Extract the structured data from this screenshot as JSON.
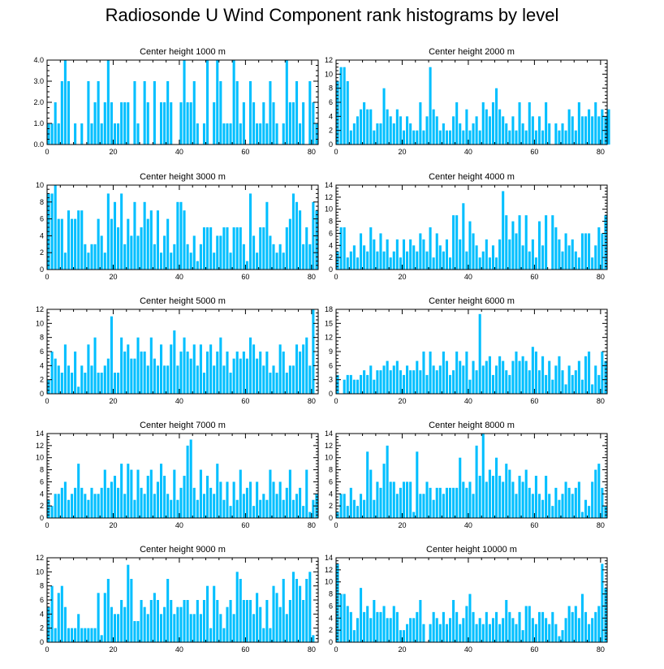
{
  "title": "Radiosonde U Wind Component rank histograms by level",
  "colors": {
    "bar": "#00BFFF",
    "axis": "#000000"
  },
  "chart_data": [
    {
      "type": "bar",
      "title": "Center height 1000 m",
      "xlim": [
        0,
        82
      ],
      "ylim": [
        0,
        4
      ],
      "xticks": [
        "0",
        "20",
        "40",
        "60",
        "80"
      ],
      "yticks": [
        "0.0",
        "1.0",
        "2.0",
        "3.0",
        "4.0"
      ],
      "values": [
        1,
        1,
        2,
        1,
        3,
        4,
        3,
        0,
        1,
        0,
        1,
        0,
        3,
        1,
        2,
        3,
        1,
        2,
        4,
        2,
        1,
        1,
        2,
        2,
        2,
        0,
        3,
        1,
        0,
        3,
        2,
        0,
        3,
        0,
        2,
        2,
        3,
        2,
        0,
        0,
        2,
        4,
        2,
        2,
        3,
        1,
        0,
        1,
        4,
        0,
        2,
        4,
        3,
        1,
        1,
        1,
        4,
        3,
        1,
        2,
        0,
        3,
        2,
        1,
        1,
        2,
        1,
        3,
        2,
        1,
        0,
        1,
        4,
        2,
        2,
        3,
        1,
        2,
        0,
        3,
        2,
        1
      ]
    },
    {
      "type": "bar",
      "title": "Center height 2000 m",
      "xlim": [
        0,
        82
      ],
      "ylim": [
        0,
        12
      ],
      "xticks": [
        "0",
        "20",
        "40",
        "60",
        "80"
      ],
      "yticks": [
        "0",
        "2",
        "4",
        "6",
        "8",
        "10",
        "12"
      ],
      "values": [
        9,
        11,
        11,
        9,
        2,
        3,
        4,
        5,
        6,
        5,
        5,
        2,
        3,
        3,
        8,
        5,
        4,
        3,
        5,
        4,
        2,
        4,
        3,
        2,
        2,
        6,
        2,
        4,
        11,
        5,
        4,
        2,
        3,
        2,
        2,
        4,
        6,
        3,
        2,
        5,
        2,
        3,
        4,
        2,
        6,
        5,
        4,
        6,
        8,
        5,
        4,
        3,
        2,
        4,
        2,
        6,
        3,
        2,
        6,
        4,
        2,
        4,
        2,
        6,
        3,
        0,
        3,
        2,
        3,
        2,
        5,
        4,
        2,
        6,
        4,
        4,
        5,
        4,
        6,
        4,
        5,
        4,
        5
      ]
    },
    {
      "type": "bar",
      "title": "Center height 3000 m",
      "xlim": [
        0,
        82
      ],
      "ylim": [
        0,
        10
      ],
      "xticks": [
        "0",
        "20",
        "40",
        "60",
        "80"
      ],
      "yticks": [
        "0",
        "2",
        "4",
        "6",
        "8",
        "10"
      ],
      "values": [
        9,
        9,
        10,
        6,
        6,
        2,
        7,
        6,
        6,
        7,
        7,
        3,
        2,
        3,
        3,
        6,
        4,
        2,
        9,
        6,
        8,
        5,
        9,
        3,
        6,
        4,
        8,
        4,
        5,
        8,
        6,
        7,
        3,
        7,
        2,
        4,
        6,
        2,
        3,
        8,
        8,
        7,
        3,
        2,
        4,
        1,
        3,
        5,
        5,
        5,
        2,
        4,
        4,
        5,
        5,
        2,
        5,
        5,
        5,
        3,
        1,
        9,
        4,
        2,
        5,
        5,
        8,
        4,
        3,
        2,
        3,
        2,
        5,
        6,
        9,
        8,
        7,
        3,
        5,
        3,
        8,
        7
      ]
    },
    {
      "type": "bar",
      "title": "Center height 4000 m",
      "xlim": [
        0,
        82
      ],
      "ylim": [
        0,
        14
      ],
      "xticks": [
        "0",
        "20",
        "40",
        "60",
        "80"
      ],
      "yticks": [
        "0",
        "2",
        "4",
        "6",
        "8",
        "10",
        "12",
        "14"
      ],
      "values": [
        3,
        7,
        7,
        2,
        3,
        4,
        2,
        6,
        4,
        3,
        7,
        5,
        3,
        6,
        3,
        5,
        2,
        3,
        5,
        2,
        5,
        3,
        5,
        4,
        3,
        6,
        5,
        3,
        7,
        2,
        6,
        4,
        3,
        5,
        2,
        9,
        9,
        5,
        11,
        3,
        8,
        6,
        4,
        2,
        3,
        5,
        2,
        4,
        2,
        5,
        13,
        9,
        5,
        8,
        6,
        9,
        4,
        9,
        3,
        5,
        2,
        8,
        4,
        9,
        0,
        9,
        7,
        5,
        3,
        6,
        4,
        5,
        3,
        2,
        6,
        6,
        6,
        2,
        4,
        7,
        6,
        9
      ]
    },
    {
      "type": "bar",
      "title": "Center height 5000 m",
      "xlim": [
        0,
        82
      ],
      "ylim": [
        0,
        12
      ],
      "xticks": [
        "0",
        "20",
        "40",
        "60",
        "80"
      ],
      "yticks": [
        "0",
        "2",
        "4",
        "6",
        "8",
        "10",
        "12"
      ],
      "values": [
        2,
        6,
        5,
        4,
        3,
        7,
        4,
        3,
        6,
        1,
        4,
        3,
        7,
        4,
        8,
        3,
        3,
        4,
        5,
        11,
        3,
        3,
        8,
        6,
        7,
        5,
        5,
        8,
        6,
        6,
        4,
        8,
        5,
        4,
        7,
        4,
        4,
        7,
        9,
        4,
        6,
        8,
        6,
        5,
        7,
        4,
        7,
        3,
        6,
        7,
        4,
        6,
        8,
        4,
        6,
        3,
        5,
        6,
        5,
        6,
        5,
        8,
        7,
        5,
        6,
        4,
        6,
        3,
        4,
        3,
        7,
        6,
        3,
        4,
        4,
        7,
        6,
        7,
        8,
        4,
        12
      ]
    },
    {
      "type": "bar",
      "title": "Center height 6000 m",
      "xlim": [
        0,
        82
      ],
      "ylim": [
        0,
        18
      ],
      "xticks": [
        "0",
        "20",
        "40",
        "60",
        "80"
      ],
      "yticks": [
        "0",
        "3",
        "6",
        "9",
        "12",
        "15",
        "18"
      ],
      "values": [
        4,
        0,
        3,
        4,
        4,
        3,
        3,
        4,
        5,
        4,
        6,
        3,
        5,
        5,
        6,
        7,
        5,
        6,
        7,
        5,
        4,
        6,
        5,
        5,
        7,
        5,
        9,
        4,
        9,
        6,
        5,
        6,
        9,
        7,
        4,
        5,
        9,
        7,
        6,
        9,
        3,
        7,
        5,
        17,
        6,
        7,
        8,
        4,
        6,
        8,
        7,
        5,
        4,
        7,
        9,
        7,
        8,
        7,
        5,
        10,
        9,
        5,
        8,
        4,
        7,
        3,
        6,
        8,
        5,
        2,
        6,
        4,
        5,
        7,
        3,
        8,
        9,
        2,
        6,
        4,
        9,
        7
      ]
    },
    {
      "type": "bar",
      "title": "Center height 7000 m",
      "xlim": [
        0,
        82
      ],
      "ylim": [
        0,
        14
      ],
      "xticks": [
        "0",
        "20",
        "40",
        "60",
        "80"
      ],
      "yticks": [
        "0",
        "2",
        "4",
        "6",
        "8",
        "10",
        "12",
        "14"
      ],
      "values": [
        3,
        2,
        4,
        4,
        5,
        6,
        3,
        4,
        5,
        9,
        5,
        4,
        3,
        5,
        4,
        4,
        5,
        8,
        5,
        6,
        7,
        5,
        9,
        4,
        9,
        8,
        3,
        8,
        5,
        4,
        7,
        8,
        4,
        6,
        9,
        7,
        4,
        3,
        8,
        3,
        5,
        7,
        12,
        13,
        5,
        3,
        8,
        4,
        7,
        5,
        4,
        9,
        6,
        3,
        6,
        2,
        6,
        3,
        8,
        4,
        5,
        6,
        2,
        6,
        3,
        4,
        3,
        8,
        6,
        4,
        6,
        3,
        5,
        8,
        3,
        4,
        5,
        2,
        8,
        1,
        3,
        4
      ]
    },
    {
      "type": "bar",
      "title": "Center height 8000 m",
      "xlim": [
        0,
        82
      ],
      "ylim": [
        0,
        14
      ],
      "xticks": [
        "0",
        "20",
        "40",
        "60",
        "80"
      ],
      "yticks": [
        "0",
        "2",
        "4",
        "6",
        "8",
        "10",
        "12",
        "14"
      ],
      "values": [
        1,
        4,
        4,
        2,
        5,
        3,
        2,
        4,
        3,
        11,
        8,
        3,
        6,
        5,
        9,
        12,
        6,
        6,
        4,
        5,
        6,
        6,
        6,
        1,
        11,
        4,
        4,
        6,
        5,
        3,
        5,
        5,
        4,
        5,
        5,
        5,
        5,
        10,
        6,
        5,
        6,
        4,
        12,
        7,
        14,
        6,
        8,
        7,
        10,
        7,
        6,
        9,
        8,
        6,
        4,
        7,
        6,
        8,
        5,
        4,
        7,
        4,
        3,
        7,
        4,
        2,
        5,
        3,
        4,
        6,
        5,
        4,
        5,
        6,
        1,
        3,
        2,
        6,
        8,
        9,
        5,
        2
      ]
    },
    {
      "type": "bar",
      "title": "Center height 9000 m",
      "xlim": [
        0,
        82
      ],
      "ylim": [
        0,
        12
      ],
      "xticks": [
        "0",
        "20",
        "40",
        "60",
        "80"
      ],
      "yticks": [
        "0",
        "2",
        "4",
        "6",
        "8",
        "10",
        "12"
      ],
      "values": [
        5,
        8,
        2,
        7,
        8,
        5,
        2,
        2,
        2,
        4,
        2,
        2,
        2,
        2,
        2,
        7,
        1,
        7,
        9,
        5,
        4,
        4,
        6,
        5,
        11,
        9,
        3,
        3,
        6,
        5,
        4,
        6,
        7,
        6,
        4,
        5,
        9,
        6,
        4,
        5,
        5,
        6,
        6,
        4,
        4,
        6,
        4,
        6,
        8,
        2,
        8,
        6,
        4,
        2,
        5,
        6,
        4,
        10,
        9,
        6,
        6,
        6,
        4,
        7,
        5,
        2,
        6,
        2,
        8,
        7,
        5,
        9,
        4,
        6,
        10,
        9,
        8,
        6,
        9,
        10,
        1
      ]
    },
    {
      "type": "bar",
      "title": "Center height 10000 m",
      "xlim": [
        0,
        82
      ],
      "ylim": [
        0,
        14
      ],
      "xticks": [
        "0",
        "20",
        "40",
        "60",
        "80"
      ],
      "yticks": [
        "0",
        "2",
        "4",
        "6",
        "8",
        "10",
        "12",
        "14"
      ],
      "values": [
        13,
        8,
        8,
        6,
        5,
        2,
        4,
        9,
        5,
        6,
        4,
        7,
        5,
        5,
        6,
        4,
        4,
        6,
        5,
        2,
        2,
        3,
        4,
        4,
        5,
        7,
        3,
        0,
        3,
        5,
        4,
        3,
        5,
        3,
        4,
        7,
        5,
        3,
        4,
        6,
        8,
        5,
        3,
        4,
        3,
        5,
        3,
        4,
        5,
        3,
        4,
        7,
        5,
        4,
        3,
        5,
        2,
        6,
        6,
        4,
        3,
        5,
        5,
        4,
        3,
        5,
        3,
        1,
        2,
        4,
        6,
        5,
        6,
        4,
        8,
        5,
        3,
        4,
        5,
        6,
        13,
        9
      ]
    }
  ]
}
